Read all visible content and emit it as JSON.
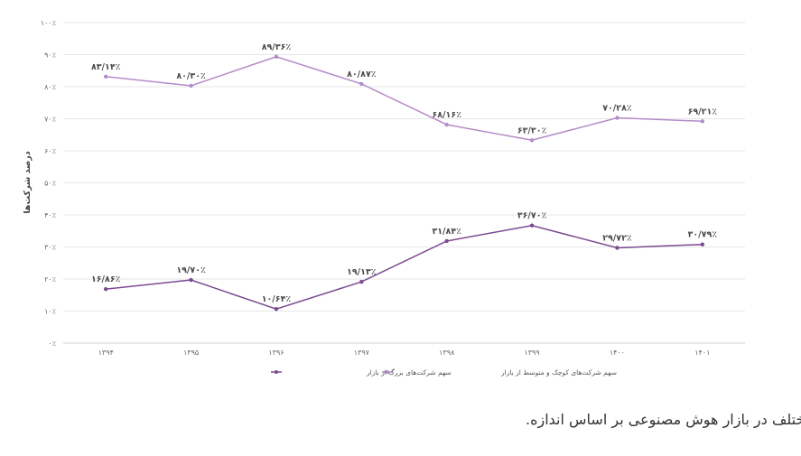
{
  "chart_data": {
    "type": "line",
    "categories": [
      "۱۳۹۴",
      "۱۳۹۵",
      "۱۳۹۶",
      "۱۳۹۷",
      "۱۳۹۸",
      "۱۳۹۹",
      "۱۴۰۰",
      "۱۴۰۱"
    ],
    "series": [
      {
        "name": "سهم شرکت‌های کوچک و متوسط از بازار",
        "color": "#b48bc8",
        "values": [
          83.14,
          80.3,
          89.36,
          80.87,
          68.16,
          63.3,
          70.28,
          69.21
        ],
        "labels": [
          "۸۳/۱۴٪",
          "۸۰/۳۰٪",
          "۸۹/۳۶٪",
          "۸۰/۸۷٪",
          "۶۸/۱۶٪",
          "۶۳/۳۰٪",
          "۷۰/۲۸٪",
          "۶۹/۲۱٪"
        ]
      },
      {
        "name": "سهم شرکت‌های بزرگ از بازار",
        "color": "#7b4a92",
        "values": [
          16.86,
          19.7,
          10.64,
          19.13,
          31.84,
          36.7,
          29.72,
          30.79
        ],
        "labels": [
          "۱۶/۸۶٪",
          "۱۹/۷۰٪",
          "۱۰/۶۴٪",
          "۱۹/۱۳٪",
          "۳۱/۸۴٪",
          "۳۶/۷۰٪",
          "۲۹/۷۲٪",
          "۳۰/۷۹٪"
        ]
      }
    ],
    "ylabel": "درصد شرکت‌ها",
    "ylim": [
      0,
      100
    ],
    "yticks": [
      0,
      10,
      20,
      30,
      40,
      50,
      60,
      70,
      80,
      90,
      100
    ],
    "ytick_labels": [
      "۰٪",
      "۱۰٪",
      "۲۰٪",
      "۳۰٪",
      "۴۰٪",
      "۵۰٪",
      "۶۰٪",
      "۷۰٪",
      "۸۰٪",
      "۹۰٪",
      "۱۰۰٪"
    ],
    "grid": true,
    "legend_position": "bottom-center"
  },
  "caption": "سهم شرکت‌های مختلف در بازار هوش مصنوعی بر اساس اندازه."
}
